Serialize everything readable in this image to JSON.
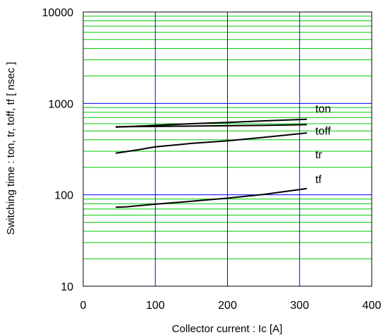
{
  "chart_data": {
    "type": "line",
    "title": "",
    "xlabel": "Collector current : Ic [A]",
    "ylabel": "Switching time  :  ton, tr, toff, tf  [ nsec ]",
    "xlim": [
      0,
      400
    ],
    "ylim": [
      10,
      10000
    ],
    "yscale": "log",
    "x_ticks": [
      0,
      100,
      200,
      300,
      400
    ],
    "x_tick_labels": [
      "0",
      "100",
      "200",
      "300",
      "400"
    ],
    "y_ticks": [
      10,
      100,
      1000,
      10000
    ],
    "y_tick_labels": [
      "10",
      "100",
      "1000",
      "10000"
    ],
    "grid": {
      "x_major_color": "#0000ff",
      "y_major_color": "#0000ff",
      "y_minor_color": "#00cc00"
    },
    "series": [
      {
        "name": "ton",
        "color": "#000000",
        "x": [
          45,
          100,
          150,
          200,
          250,
          310
        ],
        "y": [
          550,
          575,
          600,
          620,
          645,
          670
        ]
      },
      {
        "name": "toff",
        "color": "#000000",
        "x": [
          45,
          100,
          150,
          200,
          250,
          310
        ],
        "y": [
          555,
          560,
          565,
          570,
          575,
          585
        ]
      },
      {
        "name": "tr",
        "color": "#000000",
        "x": [
          45,
          75,
          100,
          150,
          200,
          250,
          310
        ],
        "y": [
          285,
          310,
          335,
          365,
          390,
          425,
          475
        ]
      },
      {
        "name": "tf",
        "color": "#000000",
        "x": [
          45,
          60,
          100,
          150,
          200,
          250,
          310
        ],
        "y": [
          73,
          74,
          79,
          85,
          92,
          101,
          117
        ]
      }
    ]
  }
}
